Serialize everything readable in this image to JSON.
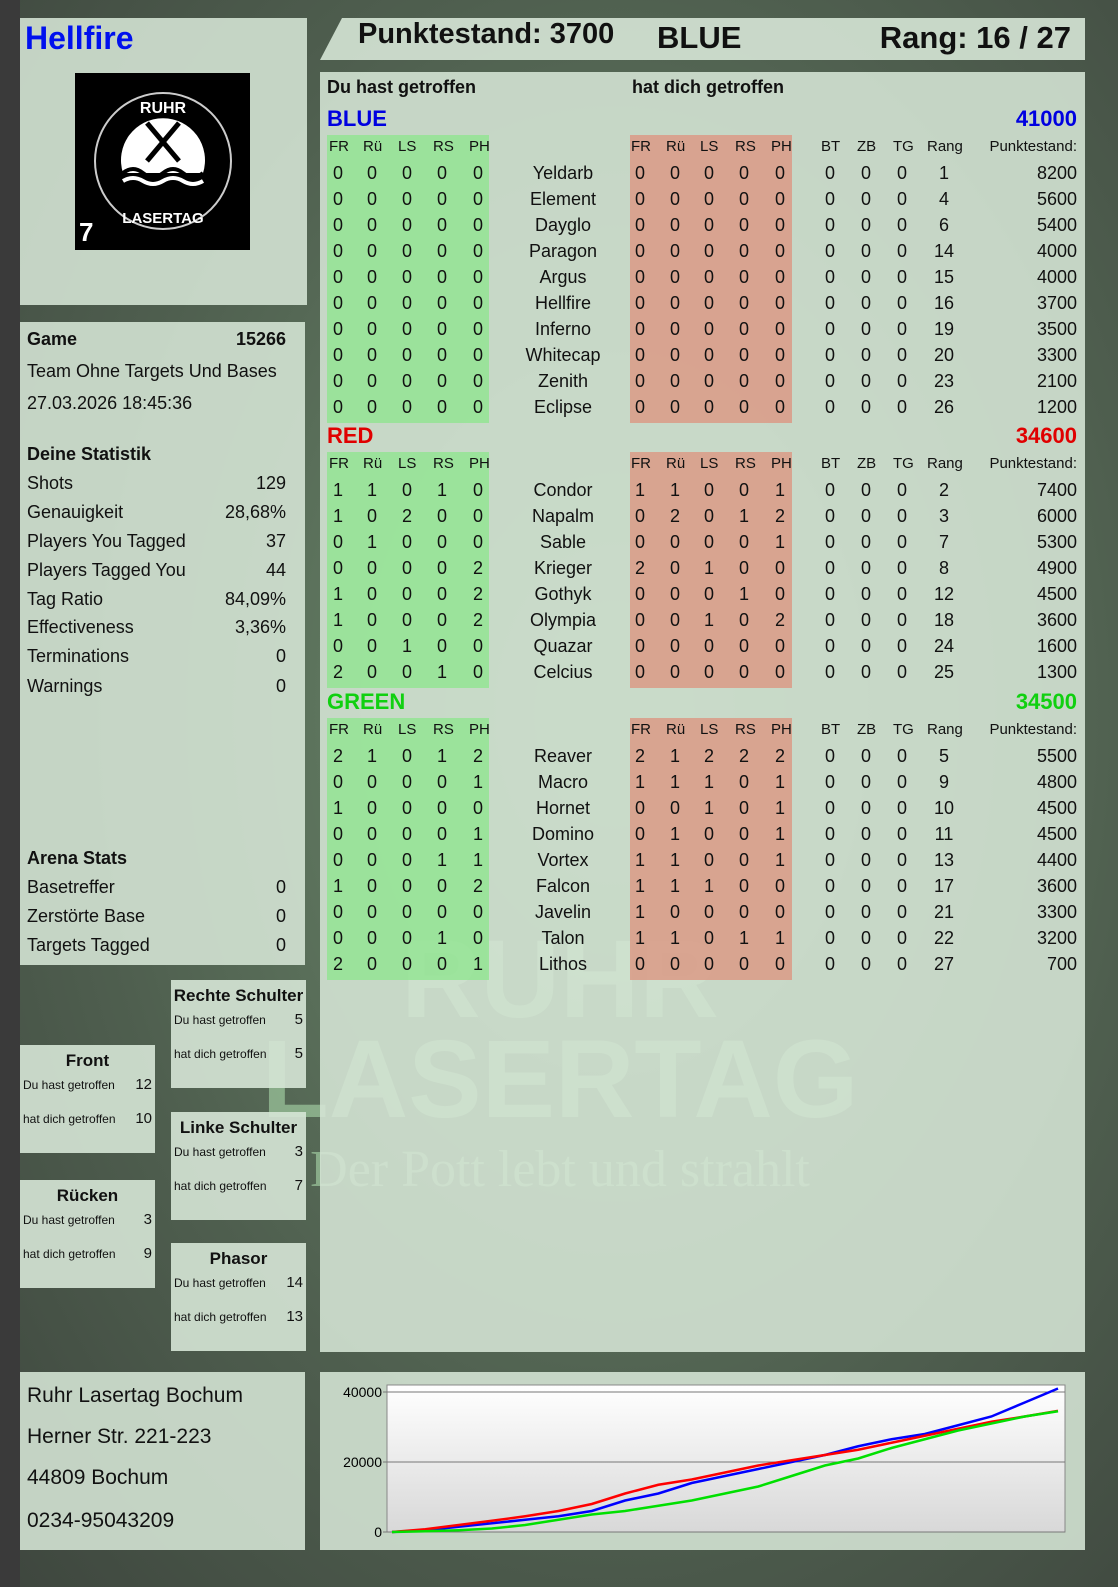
{
  "player": {
    "name": "Hellfire",
    "logo_text": "RUHR LASERTAG",
    "logo_badge": "7"
  },
  "header": {
    "score_label": "Punktestand: 3700",
    "team": "BLUE",
    "rank_label": "Rang: 16 / 27"
  },
  "main": {
    "you_hit": "Du hast getroffen",
    "hit_you": "hat dich getroffen",
    "columns": [
      "FR",
      "Rü",
      "LS",
      "RS",
      "PH"
    ],
    "extra_columns": [
      "BT",
      "ZB",
      "TG",
      "Rang",
      "Punktestand:"
    ],
    "teams": [
      {
        "name": "BLUE",
        "score": "41000",
        "color": "#0000e0",
        "players": [
          [
            "Yeldarb",
            [
              0,
              0,
              0,
              0,
              0
            ],
            [
              0,
              0,
              0,
              0,
              0
            ],
            [
              0,
              0,
              0
            ],
            1,
            8200
          ],
          [
            "Element",
            [
              0,
              0,
              0,
              0,
              0
            ],
            [
              0,
              0,
              0,
              0,
              0
            ],
            [
              0,
              0,
              0
            ],
            4,
            5600
          ],
          [
            "Dayglo",
            [
              0,
              0,
              0,
              0,
              0
            ],
            [
              0,
              0,
              0,
              0,
              0
            ],
            [
              0,
              0,
              0
            ],
            6,
            5400
          ],
          [
            "Paragon",
            [
              0,
              0,
              0,
              0,
              0
            ],
            [
              0,
              0,
              0,
              0,
              0
            ],
            [
              0,
              0,
              0
            ],
            14,
            4000
          ],
          [
            "Argus",
            [
              0,
              0,
              0,
              0,
              0
            ],
            [
              0,
              0,
              0,
              0,
              0
            ],
            [
              0,
              0,
              0
            ],
            15,
            4000
          ],
          [
            "Hellfire",
            [
              0,
              0,
              0,
              0,
              0
            ],
            [
              0,
              0,
              0,
              0,
              0
            ],
            [
              0,
              0,
              0
            ],
            16,
            3700
          ],
          [
            "Inferno",
            [
              0,
              0,
              0,
              0,
              0
            ],
            [
              0,
              0,
              0,
              0,
              0
            ],
            [
              0,
              0,
              0
            ],
            19,
            3500
          ],
          [
            "Whitecap",
            [
              0,
              0,
              0,
              0,
              0
            ],
            [
              0,
              0,
              0,
              0,
              0
            ],
            [
              0,
              0,
              0
            ],
            20,
            3300
          ],
          [
            "Zenith",
            [
              0,
              0,
              0,
              0,
              0
            ],
            [
              0,
              0,
              0,
              0,
              0
            ],
            [
              0,
              0,
              0
            ],
            23,
            2100
          ],
          [
            "Eclipse",
            [
              0,
              0,
              0,
              0,
              0
            ],
            [
              0,
              0,
              0,
              0,
              0
            ],
            [
              0,
              0,
              0
            ],
            26,
            1200
          ]
        ]
      },
      {
        "name": "RED",
        "score": "34600",
        "color": "#e00000",
        "players": [
          [
            "Condor",
            [
              1,
              1,
              0,
              1,
              0
            ],
            [
              1,
              1,
              0,
              0,
              1
            ],
            [
              0,
              0,
              0
            ],
            2,
            7400
          ],
          [
            "Napalm",
            [
              1,
              0,
              2,
              0,
              0
            ],
            [
              0,
              2,
              0,
              1,
              2
            ],
            [
              0,
              0,
              0
            ],
            3,
            6000
          ],
          [
            "Sable",
            [
              0,
              1,
              0,
              0,
              0
            ],
            [
              0,
              0,
              0,
              0,
              1
            ],
            [
              0,
              0,
              0
            ],
            7,
            5300
          ],
          [
            "Krieger",
            [
              0,
              0,
              0,
              0,
              2
            ],
            [
              2,
              0,
              1,
              0,
              0
            ],
            [
              0,
              0,
              0
            ],
            8,
            4900
          ],
          [
            "Gothyk",
            [
              1,
              0,
              0,
              0,
              2
            ],
            [
              0,
              0,
              0,
              1,
              0
            ],
            [
              0,
              0,
              0
            ],
            12,
            4500
          ],
          [
            "Olympia",
            [
              1,
              0,
              0,
              0,
              2
            ],
            [
              0,
              0,
              1,
              0,
              2
            ],
            [
              0,
              0,
              0
            ],
            18,
            3600
          ],
          [
            "Quazar",
            [
              0,
              0,
              1,
              0,
              0
            ],
            [
              0,
              0,
              0,
              0,
              0
            ],
            [
              0,
              0,
              0
            ],
            24,
            1600
          ],
          [
            "Celcius",
            [
              2,
              0,
              0,
              1,
              0
            ],
            [
              0,
              0,
              0,
              0,
              0
            ],
            [
              0,
              0,
              0
            ],
            25,
            1300
          ]
        ]
      },
      {
        "name": "GREEN",
        "score": "34500",
        "color": "#10d010",
        "players": [
          [
            "Reaver",
            [
              2,
              1,
              0,
              1,
              2
            ],
            [
              2,
              1,
              2,
              2,
              2
            ],
            [
              0,
              0,
              0
            ],
            5,
            5500
          ],
          [
            "Macro",
            [
              0,
              0,
              0,
              0,
              1
            ],
            [
              1,
              1,
              1,
              0,
              1
            ],
            [
              0,
              0,
              0
            ],
            9,
            4800
          ],
          [
            "Hornet",
            [
              1,
              0,
              0,
              0,
              0
            ],
            [
              0,
              0,
              1,
              0,
              1
            ],
            [
              0,
              0,
              0
            ],
            10,
            4500
          ],
          [
            "Domino",
            [
              0,
              0,
              0,
              0,
              1
            ],
            [
              0,
              1,
              0,
              0,
              1
            ],
            [
              0,
              0,
              0
            ],
            11,
            4500
          ],
          [
            "Vortex",
            [
              0,
              0,
              0,
              1,
              1
            ],
            [
              1,
              1,
              0,
              0,
              1
            ],
            [
              0,
              0,
              0
            ],
            13,
            4400
          ],
          [
            "Falcon",
            [
              1,
              0,
              0,
              0,
              2
            ],
            [
              1,
              1,
              1,
              0,
              0
            ],
            [
              0,
              0,
              0
            ],
            17,
            3600
          ],
          [
            "Javelin",
            [
              0,
              0,
              0,
              0,
              0
            ],
            [
              1,
              0,
              0,
              0,
              0
            ],
            [
              0,
              0,
              0
            ],
            21,
            3300
          ],
          [
            "Talon",
            [
              0,
              0,
              0,
              1,
              0
            ],
            [
              1,
              1,
              0,
              1,
              1
            ],
            [
              0,
              0,
              0
            ],
            22,
            3200
          ],
          [
            "Lithos",
            [
              2,
              0,
              0,
              0,
              1
            ],
            [
              0,
              0,
              0,
              0,
              0
            ],
            [
              0,
              0,
              0
            ],
            27,
            700
          ]
        ]
      }
    ]
  },
  "game": {
    "label": "Game",
    "id": "15266",
    "mode": "Team Ohne Targets Und Bases",
    "datetime": "27.03.2026 18:45:36"
  },
  "stats": {
    "title": "Deine Statistik",
    "items": [
      [
        "Shots",
        "129"
      ],
      [
        "Genauigkeit",
        "28,68%"
      ],
      [
        "Players You Tagged",
        "37"
      ],
      [
        "Players Tagged You",
        "44"
      ],
      [
        "Tag Ratio",
        "84,09%"
      ],
      [
        "Effectiveness",
        "3,36%"
      ],
      [
        "Terminations",
        "0"
      ],
      [
        "Warnings",
        "0"
      ]
    ]
  },
  "arena": {
    "title": "Arena Stats",
    "items": [
      [
        "Basetreffer",
        "0"
      ],
      [
        "Zerstörte Base",
        "0"
      ],
      [
        "Targets Tagged",
        "0"
      ]
    ]
  },
  "zones": [
    {
      "name": "Rechte Schulter",
      "you_hit_label": "Du hast getroffen",
      "you_hit": "5",
      "hit_you_label": "hat dich getroffen",
      "hit_you": "5"
    },
    {
      "name": "Front",
      "you_hit_label": "Du hast getroffen",
      "you_hit": "12",
      "hit_you_label": "hat dich getroffen",
      "hit_you": "10"
    },
    {
      "name": "Linke Schulter",
      "you_hit_label": "Du hast getroffen",
      "you_hit": "3",
      "hit_you_label": "hat dich getroffen",
      "hit_you": "7"
    },
    {
      "name": "Rücken",
      "you_hit_label": "Du hast getroffen",
      "you_hit": "3",
      "hit_you_label": "hat dich getroffen",
      "hit_you": "9"
    },
    {
      "name": "Phasor",
      "you_hit_label": "Du hast getroffen",
      "you_hit": "14",
      "hit_you_label": "hat dich getroffen",
      "hit_you": "13"
    }
  ],
  "address": {
    "line1": "Ruhr Lasertag Bochum",
    "line2": "Herner Str. 221-223",
    "line3": "44809 Bochum",
    "phone": "0234-95043209"
  },
  "watermark": {
    "line1": "RUHR",
    "line2": "LASERTAG",
    "line3": "Der Pott lebt und strahlt"
  },
  "chart_data": {
    "type": "line",
    "ylim": [
      0,
      42000
    ],
    "yticks": [
      "40000",
      "20000",
      "0"
    ],
    "grid": true,
    "series": [
      {
        "color": "#0000ff",
        "values": [
          0,
          500,
          1500,
          2500,
          3500,
          4500,
          6000,
          9000,
          11000,
          14000,
          16000,
          18000,
          20000,
          22000,
          24500,
          26500,
          28000,
          30500,
          33000,
          37000,
          41000
        ]
      },
      {
        "color": "#ff0000",
        "values": [
          0,
          800,
          2000,
          3200,
          4500,
          6000,
          8000,
          11000,
          13500,
          15000,
          17000,
          19000,
          20500,
          22000,
          23500,
          25500,
          27500,
          29500,
          31500,
          33000,
          34600
        ]
      },
      {
        "color": "#00e000",
        "values": [
          0,
          200,
          500,
          1000,
          2000,
          3500,
          5000,
          6000,
          7500,
          9000,
          11000,
          13000,
          16000,
          19000,
          21000,
          24000,
          26500,
          29000,
          31000,
          33000,
          34500
        ]
      }
    ]
  }
}
